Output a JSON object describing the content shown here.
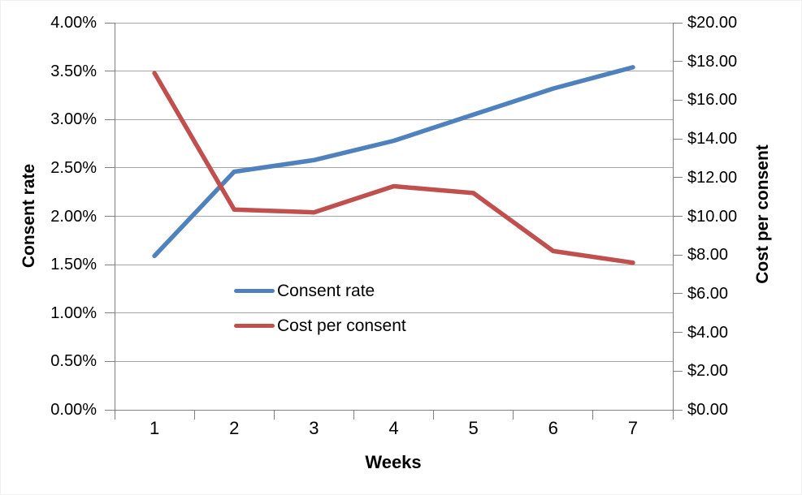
{
  "chart_data": {
    "type": "line",
    "x": [
      1,
      2,
      3,
      4,
      5,
      6,
      7
    ],
    "x_tick_labels": [
      "1",
      "2",
      "3",
      "4",
      "5",
      "6",
      "7"
    ],
    "xlabel": "Weeks",
    "series": [
      {
        "name": "Consent rate",
        "axis": "left",
        "color": "#4F81BD",
        "values": [
          1.59,
          2.46,
          2.58,
          2.78,
          3.05,
          3.32,
          3.54
        ]
      },
      {
        "name": "Cost per consent",
        "axis": "right",
        "color": "#C0504D",
        "values": [
          17.4,
          10.35,
          10.2,
          11.55,
          11.2,
          8.2,
          7.6
        ]
      }
    ],
    "left_axis": {
      "title": "Consent rate",
      "min": 0,
      "max": 4,
      "step": 0.5,
      "unit": "%",
      "tick_labels": [
        "4.00%",
        "3.50%",
        "3.00%",
        "2.50%",
        "2.00%",
        "1.50%",
        "1.00%",
        "0.50%",
        "0.00%"
      ]
    },
    "right_axis": {
      "title": "Cost per consent",
      "min": 0,
      "max": 20,
      "step": 2,
      "unit": "$",
      "tick_labels": [
        "$20.00",
        "$18.00",
        "$16.00",
        "$14.00",
        "$12.00",
        "$10.00",
        "$8.00",
        "$6.00",
        "$4.00",
        "$2.00",
        "$0.00"
      ]
    },
    "grid": "horizontal gridlines at left-axis ticks",
    "legend_position": "inside plot, left-center, no border"
  },
  "legend": {
    "items": [
      {
        "label": "Consent rate",
        "color": "#4F81BD"
      },
      {
        "label": "Cost per consent",
        "color": "#C0504D"
      }
    ]
  },
  "colors": {
    "series_blue": "#4F81BD",
    "series_red": "#C0504D",
    "gridline": "#A6A6A6",
    "axis": "#808080",
    "text": "#000000",
    "background": "#FFFFFF"
  }
}
